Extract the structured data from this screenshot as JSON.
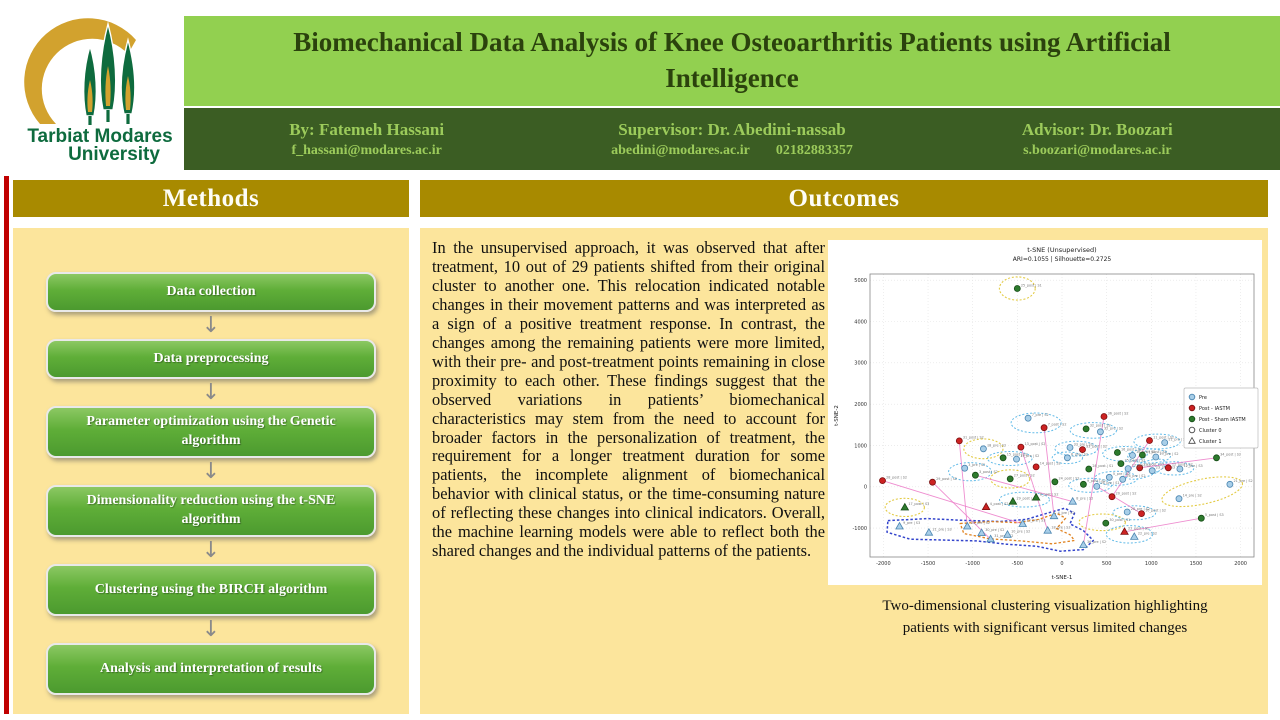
{
  "colors": {
    "title_band": "#92D050",
    "people_band": "#3B5D23",
    "gold_header": "#A88A00",
    "panel_yellow": "#FCE59C",
    "red_stripe": "#C00000",
    "button_green": "#5FAE38",
    "logo_gold": "#D2A22E",
    "logo_green": "#0E6B3E"
  },
  "logo": {
    "line1": "Tarbiat Modares",
    "line2": "University"
  },
  "header": {
    "title": "Biomechanical Data Analysis of Knee Osteoarthritis Patients using Artificial Intelligence",
    "by_label": "By: Fatemeh Hassani",
    "by_email": "f_hassani@modares.ac.ir",
    "supervisor_label": "Supervisor: Dr. Abedini-nassab",
    "supervisor_email": "abedini@modares.ac.ir",
    "supervisor_phone": "02182883357",
    "advisor_label": "Advisor: Dr. Boozari",
    "advisor_email": "s.boozari@modares.ac.ir"
  },
  "methods": {
    "header": "Methods",
    "steps": [
      "Data collection",
      "Data preprocessing",
      "Parameter optimization using the Genetic algorithm",
      "Dimensionality reduction using the t-SNE algorithm",
      "Clustering using the BIRCH algorithm",
      "Analysis and interpretation of results"
    ]
  },
  "outcomes": {
    "header": "Outcomes",
    "paragraph": "In the unsupervised approach, it was observed that after treatment, 10 out of 29 patients shifted from their original cluster to another one. This relocation indicated notable changes in their movement patterns and was interpreted as a sign of a positive treatment response. In contrast, the changes among the remaining patients were more limited, with their pre- and post-treatment points remaining in close proximity to each other. These findings suggest that the observed variations in patients’ biomechanical characteristics may stem from the need to account for broader factors in the personalization of treatment, the requirement for a longer treatment duration for some patients, the incomplete alignment of biomechanical behavior with clinical status, or the time-consuming nature of reflecting these changes into clinical indicators. Overall, the machine learning models were able to reflect both the shared changes and the individual patterns of the patients.",
    "caption": "Two-dimensional clustering visualization highlighting patients with significant versus limited changes"
  },
  "chart_data": {
    "type": "scatter",
    "title": "t-SNE (Unsupervised)",
    "subtitle": "ARI=0.1055 | Silhouette=0.2725",
    "xlabel": "t-SNE-1",
    "ylabel": "t-SNE-2",
    "xlim": [
      -2150,
      2150
    ],
    "ylim": [
      -1700,
      5150
    ],
    "xticks": [
      -2000,
      -1500,
      -1000,
      -500,
      0,
      500,
      1000,
      1500,
      2000
    ],
    "yticks": [
      -1000,
      0,
      1000,
      2000,
      3000,
      4000,
      5000
    ],
    "legend": [
      {
        "label": "Pre",
        "marker": "circle",
        "fill": "#A8CEE8",
        "stroke": "#4A85B0"
      },
      {
        "label": "Post - IASTM",
        "marker": "circle",
        "fill": "#CC2222",
        "stroke": "#7A1010"
      },
      {
        "label": "Post - Sham IASTM",
        "marker": "circle",
        "fill": "#2D7A2D",
        "stroke": "#174D17"
      },
      {
        "label": "Cluster 0",
        "marker": "circle-open",
        "fill": "#ffffff",
        "stroke": "#444444"
      },
      {
        "label": "Cluster 1",
        "marker": "triangle-open",
        "fill": "#ffffff",
        "stroke": "#444444"
      }
    ],
    "group_styles": {
      "pre": {
        "fill": "#A8CEE8",
        "stroke": "#4A85B0"
      },
      "iastm": {
        "fill": "#CC2222",
        "stroke": "#7A1010"
      },
      "sham": {
        "fill": "#2D7A2D",
        "stroke": "#174D17"
      }
    },
    "points": [
      [
        -500,
        4800,
        "sham",
        "c",
        "25_post | S1"
      ],
      [
        -380,
        1660,
        "pre",
        "c",
        "7_pre | S2"
      ],
      [
        -200,
        1430,
        "iastm",
        "c",
        "7_post | S2"
      ],
      [
        470,
        1700,
        "iastm",
        "c",
        "36_post | S2"
      ],
      [
        270,
        1400,
        "sham",
        "c",
        "32_post | S2"
      ],
      [
        430,
        1330,
        "pre",
        "c",
        "32_pre | S2"
      ],
      [
        -1150,
        1110,
        "iastm",
        "c",
        "31_post | S2"
      ],
      [
        980,
        1120,
        "iastm",
        "c",
        "11_post | S2"
      ],
      [
        1150,
        1070,
        "pre",
        "c",
        "11_pre | S3"
      ],
      [
        -880,
        920,
        "pre",
        "c",
        "18_pre | S2"
      ],
      [
        -460,
        960,
        "iastm",
        "c",
        "13_post | S2"
      ],
      [
        90,
        950,
        "pre",
        "c",
        "33_pre | S2"
      ],
      [
        230,
        900,
        "iastm",
        "c",
        "33_post | S2"
      ],
      [
        -660,
        700,
        "sham",
        "c",
        "15_post | S2"
      ],
      [
        -510,
        670,
        "pre",
        "c",
        "15_pre | S2"
      ],
      [
        60,
        700,
        "pre",
        "c",
        "6_pre | S2"
      ],
      [
        620,
        830,
        "sham",
        "c",
        "16_post | S2"
      ],
      [
        790,
        760,
        "pre",
        "c",
        "16_pre | S2"
      ],
      [
        -1090,
        450,
        "pre",
        "c",
        "3_pre | S2"
      ],
      [
        -970,
        280,
        "sham",
        "c",
        "3_post | S2"
      ],
      [
        -290,
        480,
        "iastm",
        "c",
        "14_post | S2"
      ],
      [
        -580,
        190,
        "sham",
        "c",
        "27_post | S2"
      ],
      [
        300,
        430,
        "sham",
        "c",
        "28_post | S1"
      ],
      [
        660,
        560,
        "sham",
        "c",
        "35_post | S2"
      ],
      [
        530,
        230,
        "pre",
        "c",
        "5_pre | S2"
      ],
      [
        680,
        180,
        "pre",
        "c",
        "26_pre | S2"
      ],
      [
        870,
        460,
        "iastm",
        "c",
        "23_post | S2"
      ],
      [
        1010,
        390,
        "pre",
        "c",
        "23_pre | S3"
      ],
      [
        1190,
        460,
        "iastm",
        "c",
        "12_post | S2"
      ],
      [
        1320,
        430,
        "pre",
        "c",
        "12_pre | S3"
      ],
      [
        1730,
        700,
        "sham",
        "c",
        "34_post | S2"
      ],
      [
        -2010,
        150,
        "iastm",
        "c",
        "28_post | S2"
      ],
      [
        -1450,
        110,
        "iastm",
        "c",
        "29_post | S2"
      ],
      [
        240,
        60,
        "sham",
        "c",
        "9_post | S2"
      ],
      [
        390,
        10,
        "pre",
        "c",
        "26_pre | S1"
      ],
      [
        1880,
        60,
        "pre",
        "c",
        "21_pre | S2"
      ],
      [
        1310,
        -290,
        "pre",
        "c",
        "14_pre | S2"
      ],
      [
        -80,
        120,
        "sham",
        "c",
        "24_post | S2"
      ],
      [
        560,
        -240,
        "iastm",
        "c",
        "20_post | S2"
      ],
      [
        730,
        -610,
        "pre",
        "c",
        "28_pre | S2"
      ],
      [
        890,
        -650,
        "iastm",
        "c",
        "10_post | S2"
      ],
      [
        490,
        -880,
        "sham",
        "c",
        "30_post | S1"
      ],
      [
        1560,
        -760,
        "sham",
        "c",
        "5_post | S3"
      ],
      [
        740,
        440,
        "pre",
        "c",
        "17_pre | S2"
      ],
      [
        1050,
        720,
        "pre",
        "c",
        "19_pre | S2"
      ],
      [
        900,
        770,
        "sham",
        "c",
        "19_post | S2"
      ],
      [
        -1760,
        -500,
        "sham",
        "t",
        "17_post | S3"
      ],
      [
        -1820,
        -960,
        "pre",
        "t",
        "9_pre | S3"
      ],
      [
        -1490,
        -1110,
        "pre",
        "t",
        "21_pre | S3"
      ],
      [
        -1060,
        -960,
        "pre",
        "t",
        "23_pre | S2"
      ],
      [
        -900,
        -1120,
        "pre",
        "t",
        "30_pre | S2"
      ],
      [
        -800,
        -1270,
        "pre",
        "t",
        "31_pre | S2"
      ],
      [
        -610,
        -1160,
        "pre",
        "t",
        "10_pre | S2"
      ],
      [
        -440,
        -900,
        "pre",
        "t",
        "13_pre | S3"
      ],
      [
        -160,
        -1060,
        "pre",
        "t",
        "18_pre | S3"
      ],
      [
        -90,
        -710,
        "pre",
        "t",
        "4_pre | S2"
      ],
      [
        240,
        -1410,
        "pre",
        "t",
        "36_pre | S2"
      ],
      [
        -850,
        -490,
        "iastm",
        "t",
        "4_post | S2"
      ],
      [
        -550,
        -360,
        "sham",
        "t",
        "29_post | S1"
      ],
      [
        -290,
        -260,
        "sham",
        "t",
        "8_post | S2"
      ],
      [
        120,
        -360,
        "pre",
        "t",
        "8_pre | S2"
      ],
      [
        700,
        -1090,
        "iastm",
        "t",
        "22_post | S1"
      ],
      [
        810,
        -1210,
        "pre",
        "t",
        "22_pre | S2"
      ]
    ],
    "pair_ellipses": [
      [
        -290,
        1545,
        280,
        240,
        0
      ],
      [
        350,
        1365,
        260,
        190,
        0
      ],
      [
        1065,
        1095,
        260,
        180,
        0
      ],
      [
        160,
        925,
        240,
        180,
        0
      ],
      [
        -585,
        685,
        250,
        170,
        0
      ],
      [
        705,
        795,
        250,
        180,
        0
      ],
      [
        -1030,
        365,
        240,
        220,
        0
      ],
      [
        940,
        425,
        240,
        180,
        -20
      ],
      [
        1255,
        445,
        220,
        160,
        0
      ],
      [
        315,
        35,
        240,
        170,
        0
      ],
      [
        810,
        -630,
        240,
        170,
        0
      ],
      [
        975,
        745,
        240,
        170,
        0
      ],
      [
        605,
        205,
        240,
        170,
        0
      ],
      [
        755,
        -1150,
        260,
        210,
        0
      ],
      [
        -420,
        -310,
        280,
        180,
        0
      ],
      [
        60,
        700,
        170,
        140,
        0
      ]
    ],
    "highlight_ellipses": [
      [
        -500,
        4800,
        200,
        280,
        0
      ],
      [
        -880,
        920,
        220,
        240,
        0
      ],
      [
        -580,
        190,
        220,
        220,
        0
      ],
      [
        -1760,
        -500,
        220,
        220,
        0
      ],
      [
        1570,
        -120,
        460,
        300,
        -12
      ],
      [
        450,
        -860,
        260,
        200,
        0
      ]
    ],
    "links": [
      [
        -2010,
        150,
        -440,
        -900
      ],
      [
        -1450,
        110,
        -800,
        -1270
      ],
      [
        -1150,
        1110,
        -1060,
        -960
      ],
      [
        -460,
        960,
        -160,
        -1060
      ],
      [
        470,
        1700,
        240,
        -1410
      ],
      [
        -200,
        1430,
        -90,
        -710
      ],
      [
        1730,
        700,
        870,
        460
      ],
      [
        1560,
        -760,
        700,
        -1090
      ],
      [
        980,
        1120,
        560,
        -240
      ],
      [
        890,
        -650,
        390,
        10
      ],
      [
        -970,
        280,
        120,
        -360
      ]
    ],
    "contours": {
      "blue": [
        [
          -1950,
          -820
        ],
        [
          -1500,
          -770
        ],
        [
          -1150,
          -810
        ],
        [
          -700,
          -840
        ],
        [
          -400,
          -790
        ],
        [
          -150,
          -630
        ],
        [
          30,
          -520
        ],
        [
          140,
          -640
        ],
        [
          90,
          -900
        ],
        [
          240,
          -1060
        ],
        [
          350,
          -1300
        ],
        [
          240,
          -1520
        ],
        [
          -20,
          -1560
        ],
        [
          -280,
          -1440
        ],
        [
          -620,
          -1390
        ],
        [
          -960,
          -1310
        ],
        [
          -1310,
          -1290
        ],
        [
          -1700,
          -1270
        ],
        [
          -1960,
          -1100
        ]
      ],
      "orange": [
        [
          -1140,
          -890
        ],
        [
          -800,
          -840
        ],
        [
          -500,
          -870
        ],
        [
          -260,
          -790
        ],
        [
          -60,
          -640
        ],
        [
          40,
          -760
        ],
        [
          -60,
          -1010
        ],
        [
          90,
          -1160
        ],
        [
          140,
          -1300
        ],
        [
          -110,
          -1380
        ],
        [
          -460,
          -1310
        ],
        [
          -810,
          -1260
        ],
        [
          -1100,
          -1130
        ]
      ]
    },
    "contour_colors": {
      "blue": "#3344CC",
      "orange": "#E0821F"
    },
    "annotation_colors": {
      "pair_ellipse": "#62BBE8",
      "highlight_ellipse": "#E3CB45",
      "link": "#EC7BC8"
    }
  }
}
